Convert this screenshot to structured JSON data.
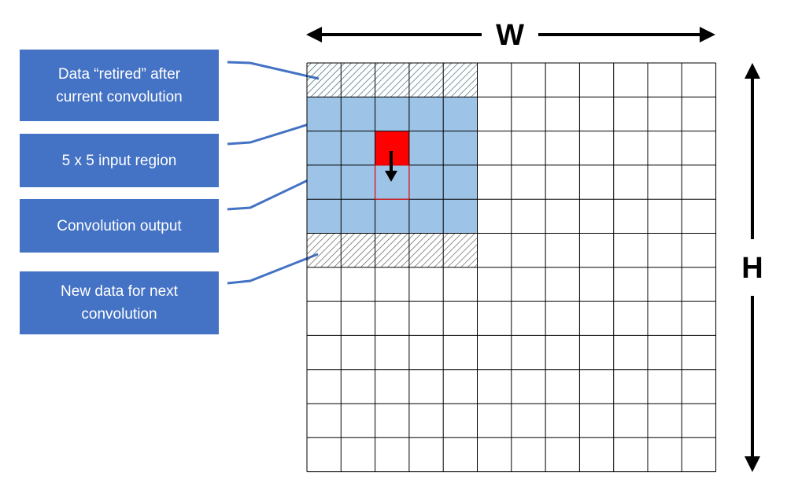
{
  "labels": {
    "retired": "Data “retired” after\ncurrent convolution",
    "input_region": "5 x 5 input region",
    "output": "Convolution output",
    "new_data": "New data for next\nconvolution"
  },
  "dimensions": {
    "width_label": "W",
    "height_label": "H"
  },
  "grid": {
    "columns": 12,
    "rows": 12,
    "window_columns": 5,
    "retired_row": 1,
    "input_rows": [
      2,
      3,
      4,
      5
    ],
    "new_data_row": 6,
    "output_cell": {
      "row": 3,
      "column": 3
    },
    "next_output_cell": {
      "row": 4,
      "column": 3
    }
  },
  "colors": {
    "label_box": "#4472C4",
    "leader_line": "#4472C4",
    "input_region": "#9DC3E6",
    "output_cell": "#FF0000",
    "next_output_border": "#FF0000",
    "retired_hatch": "#2E5F6E",
    "new_data_hatch": "#555555",
    "grid_line": "#000000"
  }
}
